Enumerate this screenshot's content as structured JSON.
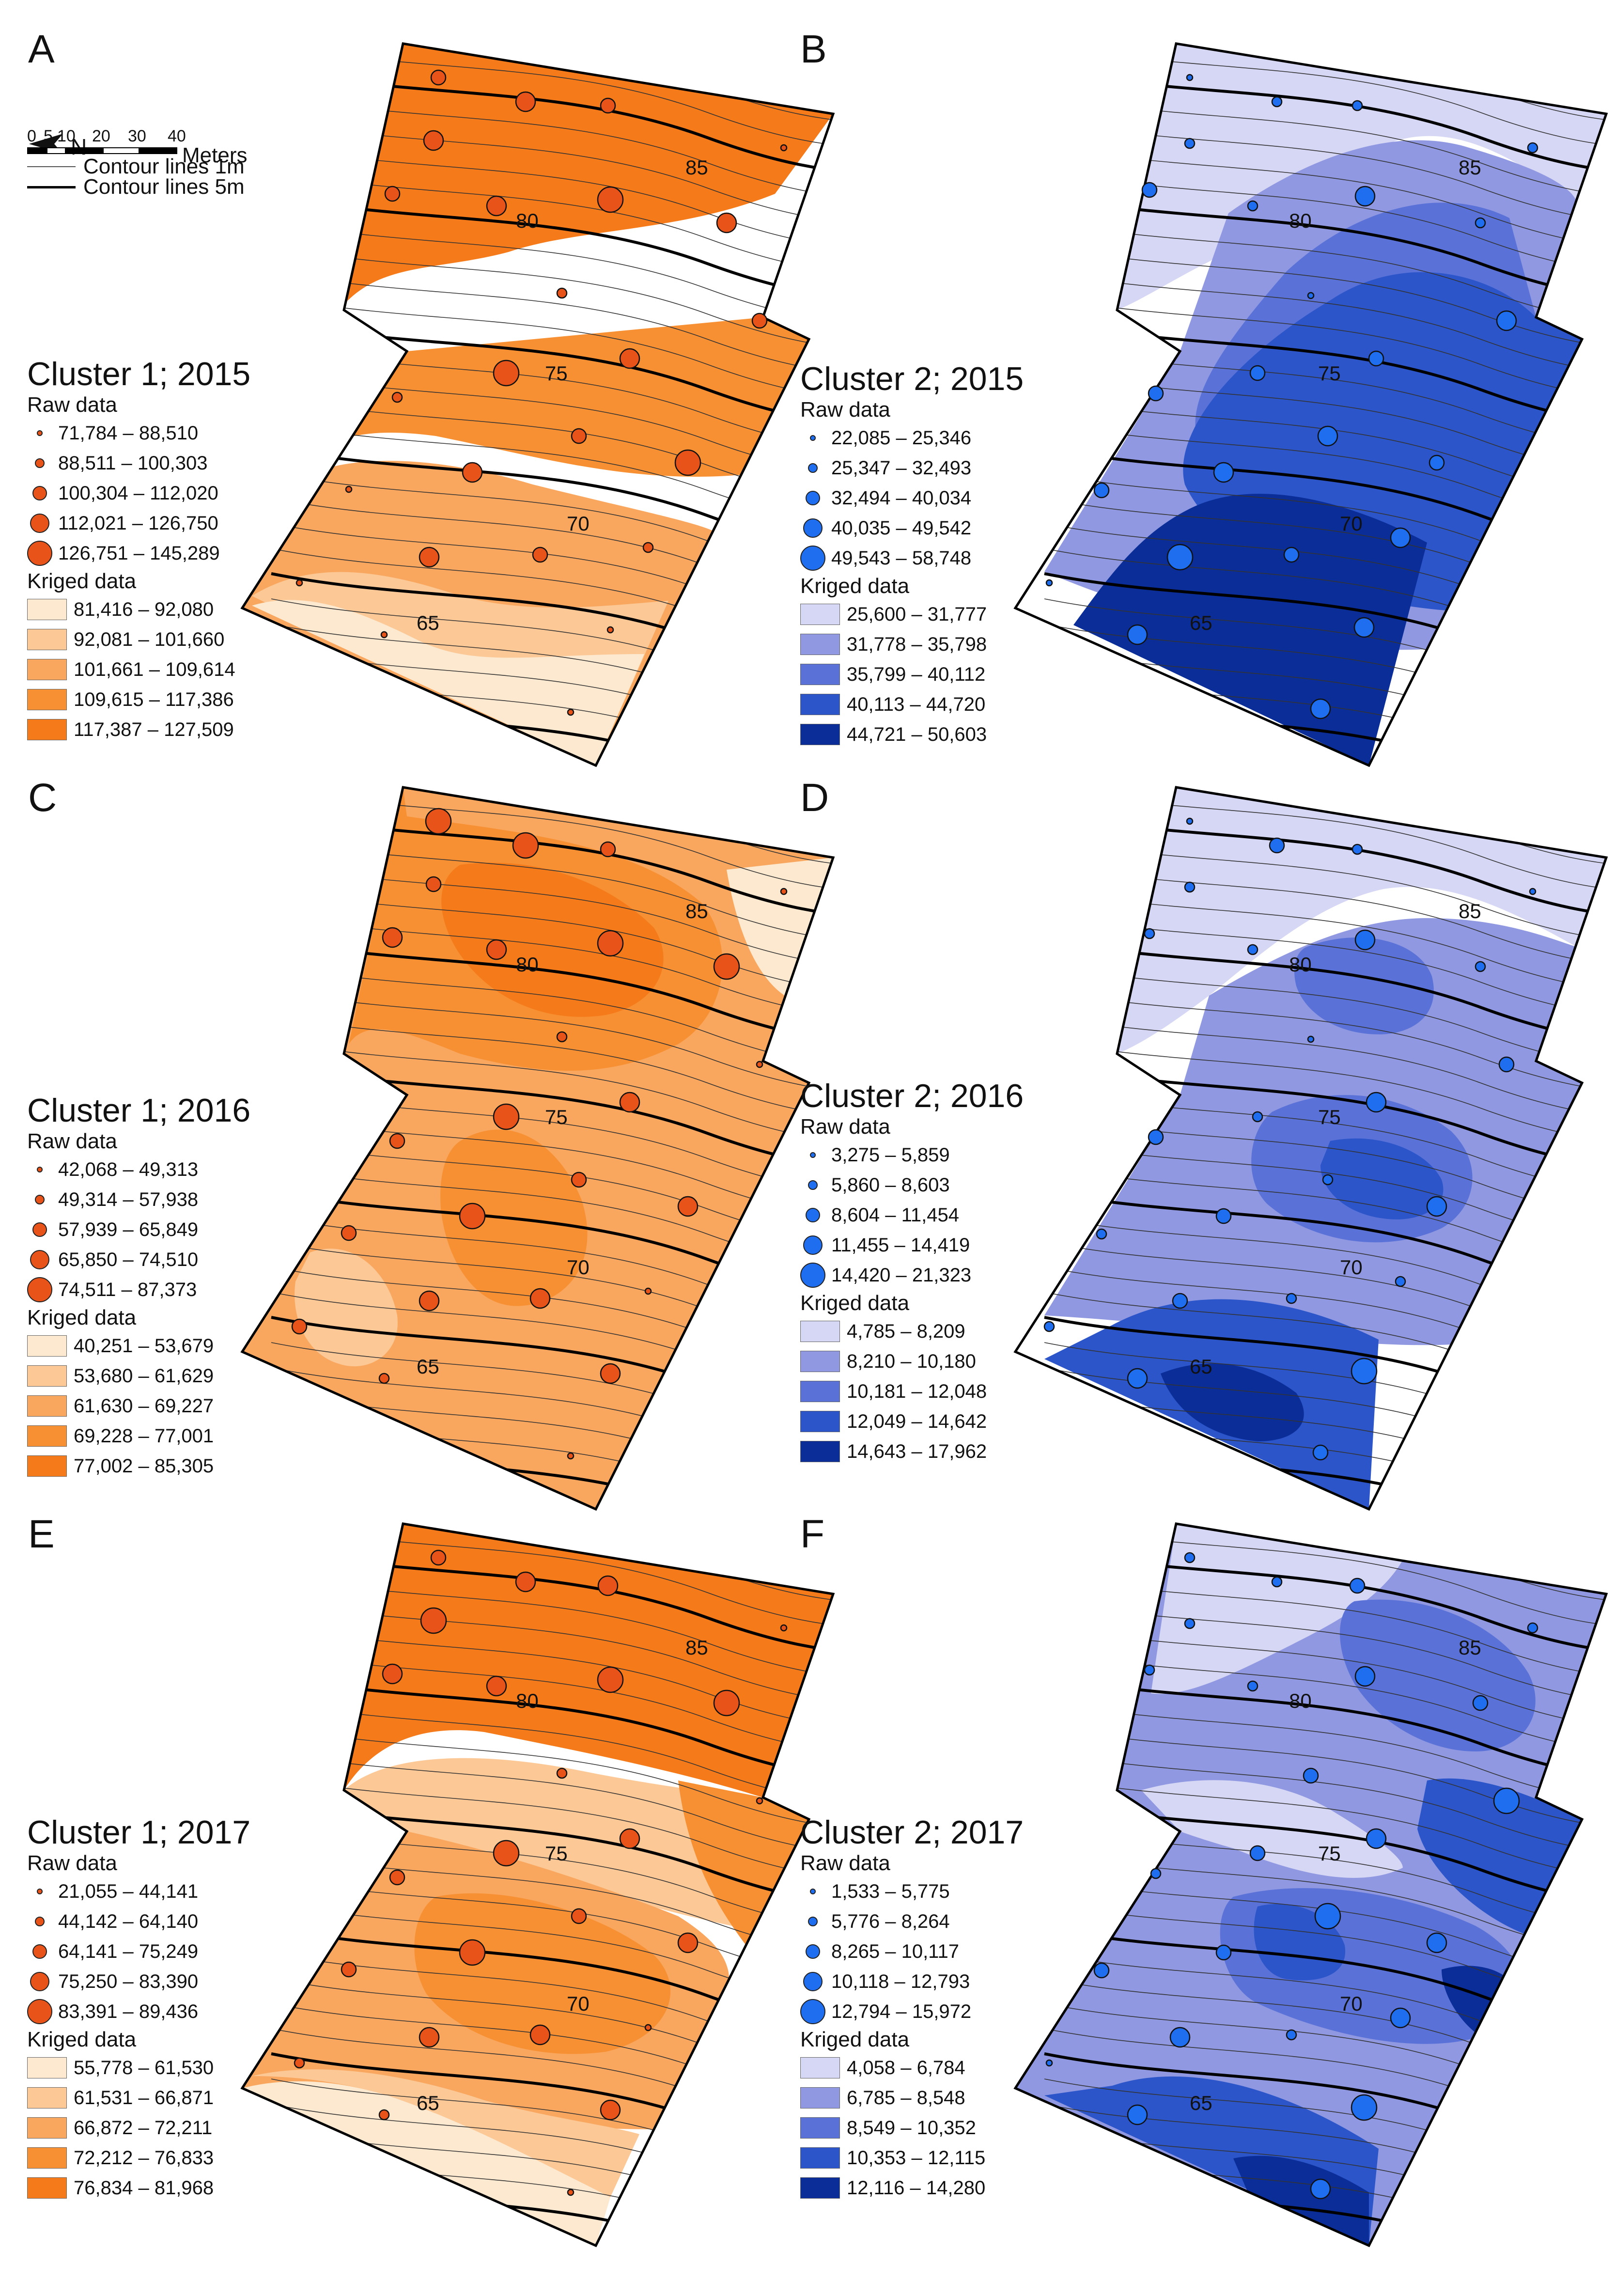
{
  "figure": {
    "north_label": "N",
    "scale": {
      "ticks": [
        "0",
        "5",
        "10",
        "20",
        "30",
        "40"
      ],
      "units": "Meters"
    },
    "contour_legend": [
      {
        "label": "Contour lines 1m",
        "style": "thin"
      },
      {
        "label": "Contour lines 5m",
        "style": "thick"
      }
    ],
    "contour_labels": [
      "85",
      "80",
      "75",
      "70",
      "65"
    ],
    "palettes": {
      "cluster1": [
        "#fde9cf",
        "#fcc896",
        "#f9a75e",
        "#f79033",
        "#f57a19"
      ],
      "cluster2": [
        "#d6d6f5",
        "#8f98e0",
        "#5a72d8",
        "#2b55c9",
        "#0a2d98"
      ]
    },
    "marker_colors": {
      "cluster1": "#e8531a",
      "cluster2": "#1f6ef0"
    }
  },
  "panels": [
    {
      "letter": "A",
      "cluster": "cluster1",
      "title": "Cluster 1; 2015",
      "raw_header": "Raw data",
      "raw": [
        "71,784 – 88,510",
        "88,511 – 100,303",
        "100,304 – 112,020",
        "112,021 – 126,750",
        "126,751 – 145,289"
      ],
      "kriged_header": "Kriged data",
      "kriged": [
        "81,416 – 92,080",
        "92,081 – 101,660",
        "101,661 – 109,614",
        "109,615 – 117,386",
        "117,387 – 127,509"
      ]
    },
    {
      "letter": "B",
      "cluster": "cluster2",
      "title": "Cluster 2; 2015",
      "raw_header": "Raw data",
      "raw": [
        "22,085 – 25,346",
        "25,347 – 32,493",
        "32,494 – 40,034",
        "40,035 – 49,542",
        "49,543 – 58,748"
      ],
      "kriged_header": "Kriged data",
      "kriged": [
        "25,600 – 31,777",
        "31,778 – 35,798",
        "35,799 – 40,112",
        "40,113 – 44,720",
        "44,721 – 50,603"
      ]
    },
    {
      "letter": "C",
      "cluster": "cluster1",
      "title": "Cluster 1; 2016",
      "raw_header": "Raw data",
      "raw": [
        "42,068 – 49,313",
        "49,314 – 57,938",
        "57,939 – 65,849",
        "65,850 – 74,510",
        "74,511 – 87,373"
      ],
      "kriged_header": "Kriged data",
      "kriged": [
        "40,251 – 53,679",
        "53,680 – 61,629",
        "61,630 – 69,227",
        "69,228 – 77,001",
        "77,002 – 85,305"
      ]
    },
    {
      "letter": "D",
      "cluster": "cluster2",
      "title": "Cluster 2; 2016",
      "raw_header": "Raw data",
      "raw": [
        "3,275 – 5,859",
        "5,860 – 8,603",
        "8,604 – 11,454",
        "11,455 – 14,419",
        "14,420 – 21,323"
      ],
      "kriged_header": "Kriged data",
      "kriged": [
        "4,785 – 8,209",
        "8,210 – 10,180",
        "10,181 – 12,048",
        "12,049 – 14,642",
        "14,643 – 17,962"
      ]
    },
    {
      "letter": "E",
      "cluster": "cluster1",
      "title": "Cluster 1; 2017",
      "raw_header": "Raw data",
      "raw": [
        "21,055 – 44,141",
        "44,142 – 64,140",
        "64,141 – 75,249",
        "75,250 – 83,390",
        "83,391 – 89,436"
      ],
      "kriged_header": "Kriged data",
      "kriged": [
        "55,778 – 61,530",
        "61,531 – 66,871",
        "66,872 – 72,211",
        "72,212 – 76,833",
        "76,834 – 81,968"
      ]
    },
    {
      "letter": "F",
      "cluster": "cluster2",
      "title": "Cluster 2; 2017",
      "raw_header": "Raw data",
      "raw": [
        "1,533 – 5,775",
        "5,776 – 8,264",
        "8,265 – 10,117",
        "10,118 – 12,793",
        "12,794 – 15,972"
      ],
      "kriged_header": "Kriged data",
      "kriged": [
        "4,058 – 6,784",
        "6,785 – 8,548",
        "8,549 – 10,352",
        "10,353 – 12,115",
        "12,116 – 14,280"
      ]
    }
  ]
}
